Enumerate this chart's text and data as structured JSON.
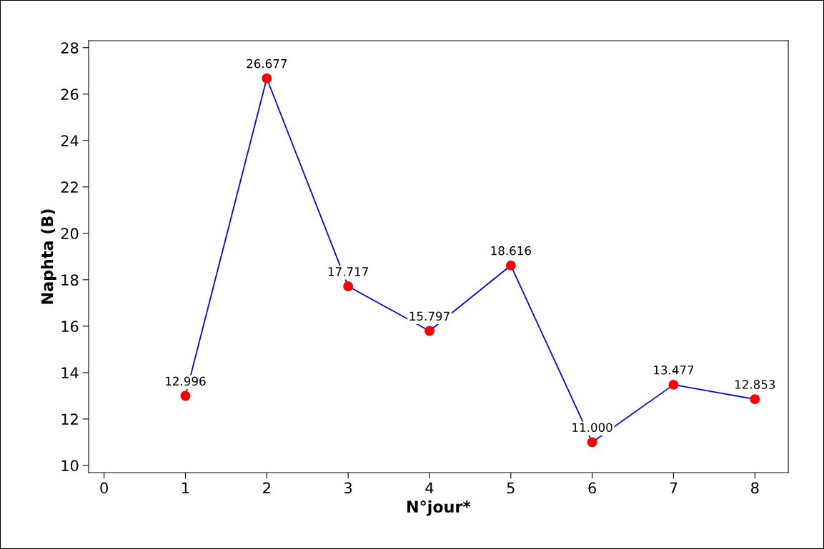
{
  "chart_data": {
    "type": "line",
    "xlabel": "N°jour*",
    "ylabel": "Naphta (B)",
    "x": [
      1,
      2,
      3,
      4,
      5,
      6,
      7,
      8
    ],
    "series": [
      {
        "color": "#0000ff",
        "colors": [
          "#ff0000",
          "#ff0000",
          "#ff0000",
          "#ff0000",
          "#ff0000",
          "#ff0000",
          "#ff0000",
          "#ff0000"
        ],
        "values": [
          12.996,
          26.677,
          17.717,
          15.797,
          18.616,
          11.0,
          13.477,
          12.853
        ]
      }
    ],
    "value_labels": [
      "12.996",
      "26.677",
      "17.717",
      "15.797",
      "18.616",
      "11.000",
      "13.477",
      "12.853"
    ],
    "xlim": [
      -0.19,
      8.41
    ],
    "ylim": [
      9.69,
      28.3
    ],
    "xticks": [
      0,
      1,
      2,
      3,
      4,
      5,
      6,
      7,
      8
    ],
    "yticks": [
      10,
      12,
      14,
      16,
      18,
      20,
      22,
      24,
      26,
      28
    ],
    "marker": "circle",
    "line_style": "solid",
    "grid": false,
    "legend": false
  }
}
